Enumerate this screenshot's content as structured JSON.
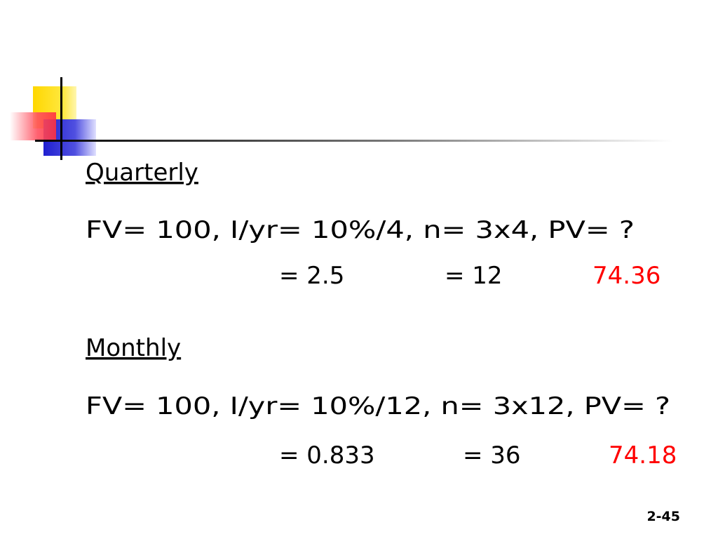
{
  "slide": {
    "sections": [
      {
        "heading": "Quarterly",
        "inputs": "FV= 100, I/yr= 10%/4, n= 3x4, PV= ?",
        "rate": "= 2.5",
        "periods": "= 12",
        "answer": "74.36"
      },
      {
        "heading": "Monthly",
        "inputs": "FV= 100, I/yr= 10%/12, n= 3x12, PV= ?",
        "rate": "= 0.833",
        "periods": "= 36",
        "answer": "74.18"
      }
    ],
    "page_number": "2-45"
  }
}
